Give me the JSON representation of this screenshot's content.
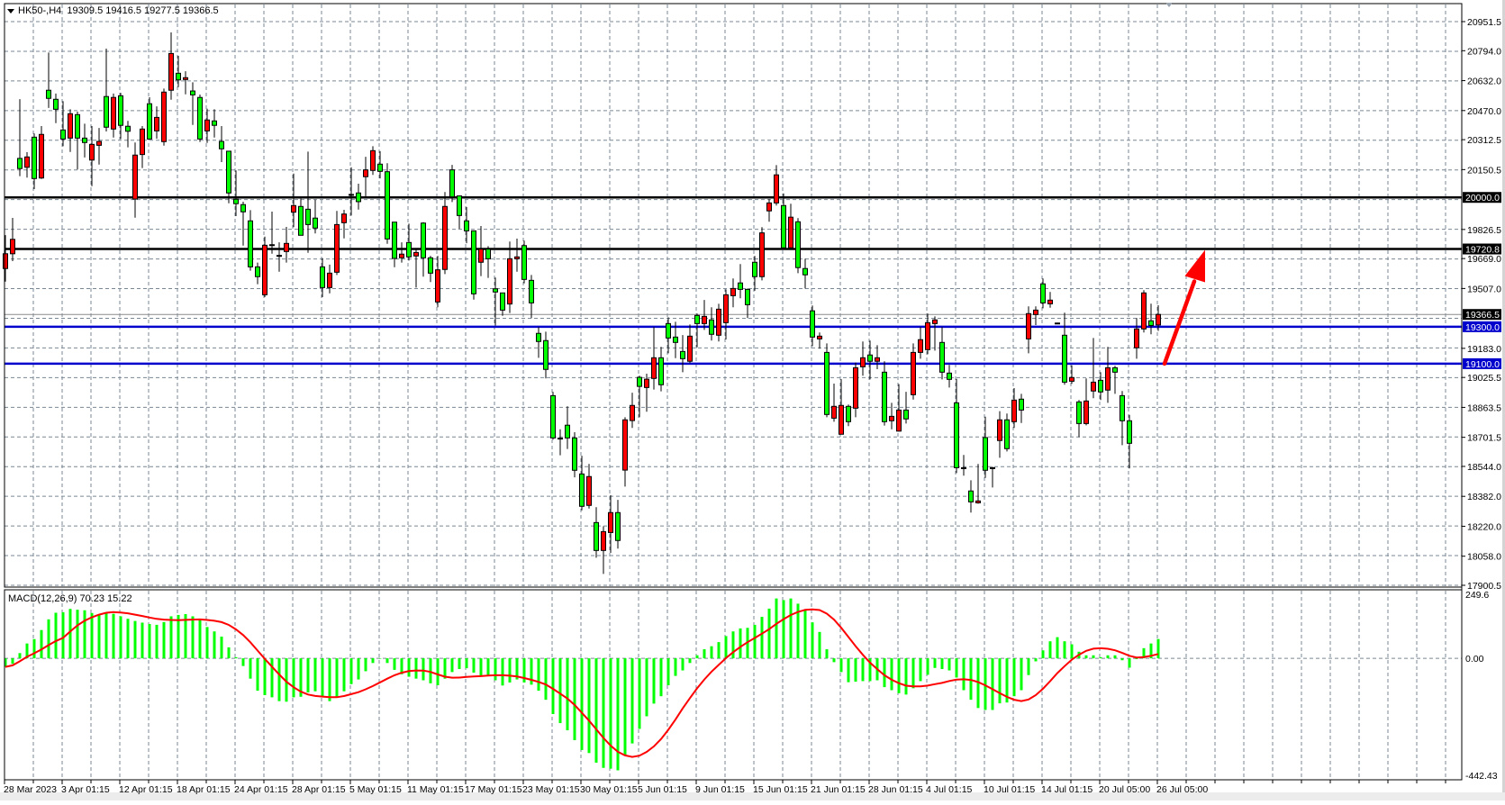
{
  "header": {
    "symbol": "HK50-,H4",
    "ohlc_text": "19309.5 19416.5 19277.5 19366.5"
  },
  "colors": {
    "bull_candle": "#ff0000",
    "bear_candle": "#00ff00",
    "grid": "#7a8794",
    "resistance_line": "#000000",
    "support_line": "#0000cd",
    "macd_histogram": "#00ff00",
    "macd_signal": "#ff0000",
    "arrow": "#ff0000"
  },
  "price_axis": {
    "range": [
      17900.5,
      20951.5
    ],
    "ticks": [
      "20951.5",
      "20794.0",
      "20632.0",
      "20470.0",
      "20312.5",
      "20150.5",
      "19826.5",
      "19669.0",
      "19507.0",
      "19183.0",
      "19025.5",
      "18863.5",
      "18701.5",
      "18544.0",
      "18382.0",
      "18220.0",
      "18058.0",
      "17900.5"
    ]
  },
  "horizontal_lines": [
    {
      "price": 20000.0,
      "label": "20000.0",
      "type": "resistance"
    },
    {
      "price": 19720.8,
      "label": "19720.8",
      "type": "resistance"
    },
    {
      "price": 19300.0,
      "label": "19300.0",
      "type": "support"
    },
    {
      "price": 19100.0,
      "label": "19100.0",
      "type": "support"
    }
  ],
  "current_price": {
    "price": 19366.5,
    "label": "19366.5"
  },
  "annotation_arrow": {
    "from_price": 19100,
    "to_price": 19720.8,
    "direction": "up"
  },
  "time_axis": {
    "labels": [
      "28 Mar 2023",
      "3 Apr 01:15",
      "12 Apr 01:15",
      "18 Apr 01:15",
      "24 Apr 01:15",
      "28 Apr 01:15",
      "5 May 01:15",
      "11 May 01:15",
      "17 May 01:15",
      "23 May 01:15",
      "30 May 01:15",
      "5 Jun 01:15",
      "9 Jun 01:15",
      "15 Jun 01:15",
      "21 Jun 01:15",
      "28 Jun 01:15",
      "4 Jul 01:15",
      "10 Jul 01:15",
      "14 Jul 01:15",
      "20 Jul 05:00",
      "26 Jul 05:00"
    ],
    "label_every_bars": 8
  },
  "chart_data": {
    "type": "candlestick",
    "ohlc_order": [
      "open",
      "high",
      "low",
      "close"
    ],
    "candles": [
      [
        19615,
        19796,
        19544,
        19695
      ],
      [
        19695,
        19889,
        19655,
        19773
      ],
      [
        20211,
        20532,
        20115,
        20156
      ],
      [
        20163,
        20245,
        20107,
        20219
      ],
      [
        20326,
        20346,
        20045,
        20102
      ],
      [
        20105,
        20386,
        20100,
        20341
      ],
      [
        20580,
        20784,
        20484,
        20536
      ],
      [
        20531,
        20562,
        20402,
        20477
      ],
      [
        20365,
        20521,
        20277,
        20316
      ],
      [
        20321,
        20477,
        20246,
        20453
      ],
      [
        20448,
        20464,
        20151,
        20321
      ],
      [
        20321,
        20399,
        20216,
        20297
      ],
      [
        20202,
        20386,
        20061,
        20287
      ],
      [
        20282,
        20376,
        20178,
        20303
      ],
      [
        20546,
        20805,
        20357,
        20380
      ],
      [
        20370,
        20562,
        20324,
        20541
      ],
      [
        20550,
        20566,
        20316,
        20390
      ],
      [
        20385,
        20414,
        20271,
        20358
      ],
      [
        19991,
        20297,
        19890,
        20229
      ],
      [
        20232,
        20386,
        20159,
        20370
      ],
      [
        20507,
        20542,
        20313,
        20316
      ],
      [
        20360,
        20493,
        20318,
        20433
      ],
      [
        20302,
        20589,
        20280,
        20570
      ],
      [
        20580,
        20893,
        20529,
        20779
      ],
      [
        20672,
        20766,
        20597,
        20636
      ],
      [
        20638,
        20683,
        20558,
        20648
      ],
      [
        20576,
        20623,
        20392,
        20555
      ],
      [
        20541,
        20557,
        20300,
        20316
      ],
      [
        20360,
        20480,
        20295,
        20419
      ],
      [
        20414,
        20477,
        20324,
        20390
      ],
      [
        20303,
        20386,
        20191,
        20263
      ],
      [
        20250,
        20250,
        19968,
        20024
      ],
      [
        19990,
        20146,
        19899,
        19966
      ],
      [
        19961,
        19977,
        19739,
        19922
      ],
      [
        19873,
        19931,
        19603,
        19624
      ],
      [
        19624,
        19647,
        19530,
        19571
      ],
      [
        19473,
        19788,
        19460,
        19741
      ],
      [
        19744,
        19923,
        19695,
        19744
      ],
      [
        19686,
        19757,
        19598,
        19686
      ],
      [
        19707,
        19840,
        19647,
        19751
      ],
      [
        19920,
        20129,
        19839,
        19956
      ],
      [
        19951,
        19993,
        19795,
        19795
      ],
      [
        19936,
        20248,
        19700,
        19853
      ],
      [
        19888,
        19988,
        19805,
        19834
      ],
      [
        19624,
        19671,
        19460,
        19512
      ],
      [
        19512,
        19636,
        19481,
        19590
      ],
      [
        19595,
        19927,
        19580,
        19853
      ],
      [
        19863,
        19933,
        19778,
        19910
      ],
      [
        20016,
        20163,
        19902,
        20016
      ],
      [
        20024,
        20074,
        19934,
        19977
      ],
      [
        20112,
        20220,
        20003,
        20149
      ],
      [
        20146,
        20277,
        20122,
        20253
      ],
      [
        20180,
        20250,
        20103,
        20141
      ],
      [
        20139,
        20185,
        19749,
        19775
      ],
      [
        19866,
        19866,
        19622,
        19670
      ],
      [
        19673,
        19757,
        19647,
        19693
      ],
      [
        19756,
        19858,
        19658,
        19678
      ],
      [
        19683,
        19720,
        19512,
        19702
      ],
      [
        19861,
        19866,
        19571,
        19673
      ],
      [
        19673,
        19684,
        19542,
        19590
      ],
      [
        19434,
        19683,
        19405,
        19608
      ],
      [
        19610,
        20029,
        19585,
        19951
      ],
      [
        20149,
        20176,
        19975,
        20003
      ],
      [
        20008,
        20010,
        19830,
        19902
      ],
      [
        19873,
        19948,
        19752,
        19819
      ],
      [
        19819,
        19819,
        19447,
        19478
      ],
      [
        19649,
        19845,
        19574,
        19720
      ],
      [
        19720,
        19736,
        19564,
        19668
      ],
      [
        19505,
        19566,
        19306,
        19488
      ],
      [
        19483,
        19483,
        19359,
        19390
      ],
      [
        19423,
        19761,
        19374,
        19668
      ],
      [
        19668,
        19777,
        19598,
        19678
      ],
      [
        19739,
        19766,
        19535,
        19556
      ],
      [
        19551,
        19580,
        19347,
        19429
      ],
      [
        19264,
        19298,
        19132,
        19220
      ],
      [
        19225,
        19273,
        19020,
        19069
      ],
      [
        18927,
        18947,
        18689,
        18698
      ],
      [
        18697,
        18745,
        18604,
        18697
      ],
      [
        18767,
        18869,
        18638,
        18698
      ],
      [
        18698,
        18729,
        18485,
        18523
      ],
      [
        18503,
        18602,
        18306,
        18328
      ],
      [
        18333,
        18557,
        18316,
        18489
      ],
      [
        18240,
        18323,
        18050,
        18089
      ],
      [
        18089,
        18220,
        17962,
        18191
      ],
      [
        18186,
        18388,
        18076,
        18294
      ],
      [
        18294,
        18363,
        18099,
        18143
      ],
      [
        18524,
        18810,
        18435,
        18796
      ],
      [
        18792,
        18943,
        18752,
        18874
      ],
      [
        19026,
        19035,
        18810,
        18977
      ],
      [
        18971,
        19046,
        18840,
        19016
      ],
      [
        19020,
        19298,
        18960,
        19132
      ],
      [
        19132,
        19191,
        18950,
        18986
      ],
      [
        19317,
        19351,
        19156,
        19239
      ],
      [
        19244,
        19327,
        19130,
        19215
      ],
      [
        19166,
        19255,
        19054,
        19127
      ],
      [
        19113,
        19312,
        19103,
        19249
      ],
      [
        19361,
        19371,
        19189,
        19317
      ],
      [
        19317,
        19445,
        19283,
        19356
      ],
      [
        19337,
        19405,
        19225,
        19259
      ],
      [
        19254,
        19424,
        19220,
        19395
      ],
      [
        19322,
        19502,
        19231,
        19473
      ],
      [
        19468,
        19561,
        19405,
        19507
      ],
      [
        19537,
        19639,
        19454,
        19502
      ],
      [
        19502,
        19507,
        19347,
        19419
      ],
      [
        19649,
        19683,
        19495,
        19571
      ],
      [
        19571,
        19839,
        19551,
        19808
      ],
      [
        19927,
        19991,
        19868,
        19970
      ],
      [
        19970,
        20175,
        19956,
        20122
      ],
      [
        19956,
        20021,
        19727,
        19727
      ],
      [
        19727,
        19966,
        19720,
        19893
      ],
      [
        19868,
        19888,
        19590,
        19620
      ],
      [
        19615,
        19668,
        19507,
        19581
      ],
      [
        19386,
        19415,
        19195,
        19244
      ],
      [
        19234,
        19269,
        19181,
        19249
      ],
      [
        19161,
        19210,
        18810,
        18825
      ],
      [
        18805,
        18992,
        18786,
        18869
      ],
      [
        18718,
        19016,
        18718,
        18874
      ],
      [
        18869,
        18879,
        18762,
        18786
      ],
      [
        18859,
        19106,
        18810,
        19078
      ],
      [
        19083,
        19220,
        19035,
        19132
      ],
      [
        19147,
        19225,
        19015,
        19113
      ],
      [
        19113,
        19200,
        19070,
        19132
      ],
      [
        19054,
        19113,
        18765,
        18786
      ],
      [
        18791,
        18888,
        18745,
        18815
      ],
      [
        18735,
        18989,
        18733,
        18849
      ],
      [
        18849,
        18948,
        18776,
        18801
      ],
      [
        18932,
        19210,
        18906,
        19161
      ],
      [
        19161,
        19298,
        19127,
        19230
      ],
      [
        19176,
        19371,
        19151,
        19322
      ],
      [
        19317,
        19356,
        19171,
        19337
      ],
      [
        19215,
        19298,
        19015,
        19054
      ],
      [
        19049,
        19093,
        18971,
        19015
      ],
      [
        18888,
        19018,
        18508,
        18537
      ],
      [
        18537,
        18606,
        18494,
        18537
      ],
      [
        18411,
        18469,
        18294,
        18352
      ],
      [
        18347,
        18557,
        18342,
        18357
      ],
      [
        18700,
        18813,
        18482,
        18523
      ],
      [
        18537,
        18542,
        18430,
        18537
      ],
      [
        18684,
        18843,
        18591,
        18796
      ],
      [
        18796,
        18830,
        18625,
        18640
      ],
      [
        18786,
        18968,
        18752,
        18903
      ],
      [
        18908,
        18937,
        18779,
        18849
      ],
      [
        19234,
        19410,
        19156,
        19371
      ],
      [
        19366,
        19410,
        19309,
        19390
      ],
      [
        19532,
        19561,
        19400,
        19429
      ],
      [
        19424,
        19488,
        19403,
        19444
      ],
      [
        19320,
        19322,
        19315,
        19317
      ],
      [
        19254,
        19376,
        18986,
        19000
      ],
      [
        19005,
        19091,
        18991,
        19025
      ],
      [
        18893,
        18903,
        18703,
        18776
      ],
      [
        18776,
        19020,
        18766,
        18898
      ],
      [
        18952,
        19239,
        18913,
        19000
      ],
      [
        19010,
        19054,
        18903,
        18947
      ],
      [
        18957,
        19191,
        18888,
        19078
      ],
      [
        19078,
        19088,
        18937,
        19054
      ],
      [
        18927,
        18952,
        18659,
        18791
      ],
      [
        18791,
        18823,
        18533,
        18669
      ],
      [
        19186,
        19347,
        19127,
        19288
      ],
      [
        19288,
        19498,
        19269,
        19483
      ],
      [
        19332,
        19425,
        19259,
        19307
      ],
      [
        19309.5,
        19416.5,
        19277.5,
        19366.5
      ]
    ]
  },
  "macd": {
    "label": "MACD(12,26,9) 70.23 15.22",
    "signal_period": 9,
    "axis_labels": {
      "top": "249.6",
      "zero": "0.00",
      "bottom": "-442.43"
    },
    "range": [
      -442.43,
      249.6
    ],
    "histogram": [
      -31,
      -20,
      19,
      54,
      70,
      103,
      142,
      166,
      168,
      180,
      177,
      175,
      165,
      157,
      164,
      162,
      153,
      144,
      136,
      130,
      125,
      122,
      132,
      153,
      158,
      161,
      153,
      140,
      114,
      98,
      79,
      40,
      4,
      -28,
      -74,
      -118,
      -134,
      -142,
      -156,
      -158,
      -142,
      -140,
      -124,
      -120,
      -138,
      -156,
      -140,
      -120,
      -94,
      -77,
      -47,
      -17,
      0,
      -17,
      -42,
      -58,
      -67,
      -74,
      -80,
      -91,
      -98,
      -74,
      -50,
      -39,
      -36,
      -52,
      -63,
      -63,
      -80,
      -99,
      -88,
      -77,
      -88,
      -96,
      -118,
      -151,
      -203,
      -236,
      -262,
      -298,
      -334,
      -345,
      -380,
      -399,
      -402,
      -408,
      -355,
      -310,
      -257,
      -211,
      -165,
      -138,
      -98,
      -64,
      -44,
      -17,
      11,
      33,
      44,
      59,
      81,
      98,
      109,
      111,
      122,
      151,
      181,
      218,
      212,
      218,
      199,
      175,
      131,
      96,
      33,
      -14,
      -50,
      -87,
      -85,
      -83,
      -83,
      -80,
      -105,
      -116,
      -127,
      -132,
      -109,
      -83,
      -60,
      -35,
      -39,
      -44,
      -70,
      -116,
      -151,
      -181,
      -188,
      -188,
      -164,
      -161,
      -138,
      -116,
      -61,
      -11,
      29,
      62,
      77,
      62,
      51,
      24,
      11,
      11,
      4,
      11,
      11,
      -7,
      -34,
      -3,
      37,
      54,
      70.23
    ]
  }
}
